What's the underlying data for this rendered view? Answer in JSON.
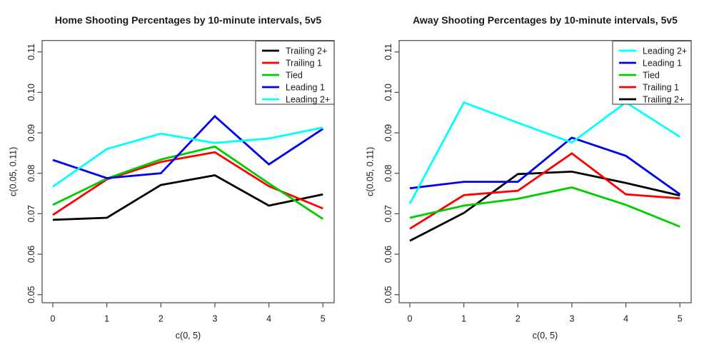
{
  "figure": {
    "background": "#ffffff"
  },
  "chart_data": [
    {
      "type": "line",
      "title": "Home Shooting Percentages by 10-minute intervals, 5v5",
      "xlabel": "c(0, 5)",
      "ylabel": "c(0.05, 0.11)",
      "x": [
        0,
        1,
        2,
        3,
        4,
        5
      ],
      "xlim": [
        0,
        5
      ],
      "ylim": [
        0.05,
        0.11
      ],
      "x_tick_labels": [
        "0",
        "1",
        "2",
        "3",
        "4",
        "5"
      ],
      "y_ticks": [
        0.05,
        0.06,
        0.07,
        0.08,
        0.09,
        0.1,
        0.11
      ],
      "y_tick_labels": [
        "0.05",
        "0.06",
        "0.07",
        "0.08",
        "0.09",
        "0.10",
        "0.11"
      ],
      "grid": false,
      "legend_position": "top-right",
      "series": [
        {
          "name": "Trailing 2+",
          "color": "#000000",
          "values": [
            0.0685,
            0.069,
            0.0771,
            0.0795,
            0.072,
            0.0748
          ]
        },
        {
          "name": "Trailing 1",
          "color": "#FF0000",
          "values": [
            0.0697,
            0.0785,
            0.0828,
            0.0852,
            0.0768,
            0.0713
          ]
        },
        {
          "name": "Tied",
          "color": "#00CD00",
          "values": [
            0.0722,
            0.0787,
            0.0834,
            0.0866,
            0.0775,
            0.0687
          ]
        },
        {
          "name": "Leading 1",
          "color": "#0000EE",
          "values": [
            0.0833,
            0.0788,
            0.08,
            0.0941,
            0.0822,
            0.091
          ]
        },
        {
          "name": "Leading 2+",
          "color": "#00FFFF",
          "values": [
            0.0767,
            0.086,
            0.0898,
            0.0875,
            0.0886,
            0.0913
          ]
        }
      ],
      "legend_order": [
        0,
        1,
        2,
        3,
        4
      ]
    },
    {
      "type": "line",
      "title": "Away Shooting Percentages by 10-minute intervals, 5v5",
      "xlabel": "c(0, 5)",
      "ylabel": "c(0.05, 0.11)",
      "x": [
        0,
        1,
        2,
        3,
        4,
        5
      ],
      "xlim": [
        0,
        5
      ],
      "ylim": [
        0.05,
        0.11
      ],
      "x_tick_labels": [
        "0",
        "1",
        "2",
        "3",
        "4",
        "5"
      ],
      "y_ticks": [
        0.05,
        0.06,
        0.07,
        0.08,
        0.09,
        0.1,
        0.11
      ],
      "y_tick_labels": [
        "0.05",
        "0.06",
        "0.07",
        "0.08",
        "0.09",
        "0.10",
        "0.11"
      ],
      "grid": false,
      "legend_position": "top-right",
      "series": [
        {
          "name": "Trailing 2+",
          "color": "#000000",
          "values": [
            0.0633,
            0.0702,
            0.0798,
            0.0804,
            0.0776,
            0.0745
          ]
        },
        {
          "name": "Trailing 1",
          "color": "#FF0000",
          "values": [
            0.0663,
            0.0746,
            0.0757,
            0.0849,
            0.0748,
            0.0738
          ]
        },
        {
          "name": "Tied",
          "color": "#00CD00",
          "values": [
            0.069,
            0.072,
            0.0737,
            0.0765,
            0.0722,
            0.0668
          ]
        },
        {
          "name": "Leading 1",
          "color": "#0000EE",
          "values": [
            0.0763,
            0.0779,
            0.0779,
            0.0888,
            0.0843,
            0.0748
          ]
        },
        {
          "name": "Leading 2+",
          "color": "#00FFFF",
          "values": [
            0.0725,
            0.0975,
            0.0925,
            0.0876,
            0.0975,
            0.089
          ]
        }
      ],
      "legend_order": [
        4,
        3,
        2,
        1,
        0
      ]
    }
  ]
}
